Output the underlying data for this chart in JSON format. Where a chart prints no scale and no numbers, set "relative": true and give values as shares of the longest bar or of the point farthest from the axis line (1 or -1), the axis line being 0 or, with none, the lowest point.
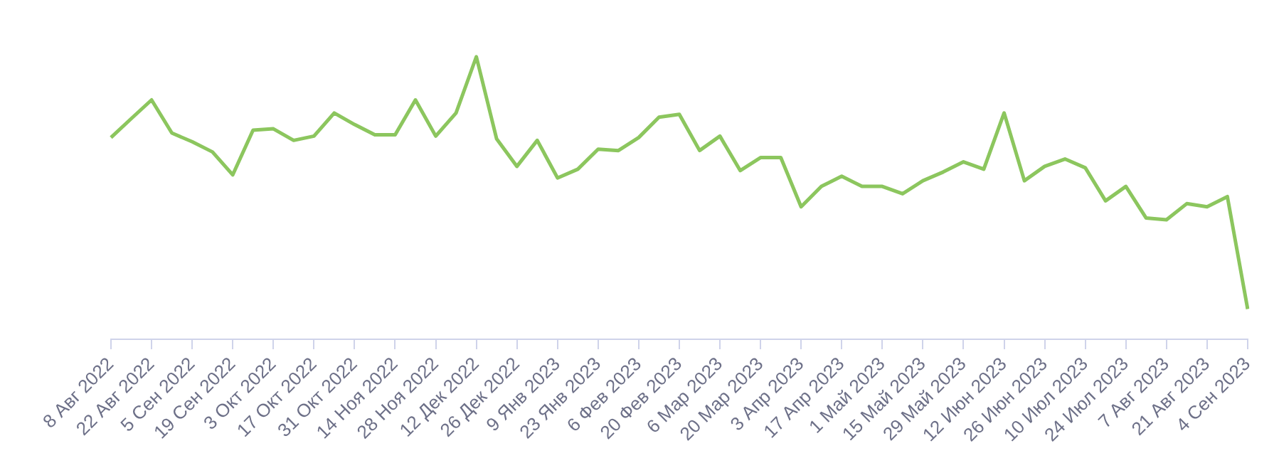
{
  "chart_data": {
    "type": "line",
    "relative": true,
    "legend": false,
    "grid": false,
    "marker": "none",
    "line_style": "solid",
    "categories": [
      "8 Авг 2022",
      null,
      "22 Авг 2022",
      null,
      "5 Сен 2022",
      null,
      "19 Сен 2022",
      null,
      "3 Окт 2022",
      null,
      "17 Окт 2022",
      null,
      "31 Окт 2022",
      null,
      "14 Ноя 2022",
      null,
      "28 Ноя 2022",
      null,
      "12 Дек 2022",
      null,
      "26 Дек 2022",
      null,
      "9 Янв 2023",
      null,
      "23 Янв 2023",
      null,
      "6 Фев 2023",
      null,
      "20 Фев 2023",
      null,
      "6 Мар 2023",
      null,
      "20 Мар 2023",
      null,
      "3 Апр 2023",
      null,
      "17 Апр 2023",
      null,
      "1 Май 2023",
      null,
      "15 Май 2023",
      null,
      "29 Май 2023",
      null,
      "12 Июн 2023",
      null,
      "26 Июн 2023",
      null,
      "10 Июл 2023",
      null,
      "24 Июл 2023",
      null,
      "7 Авг 2023",
      null,
      "21 Авг 2023",
      null,
      "4 Сен 2023"
    ],
    "series": [
      {
        "color": "#8cc65e",
        "values": [
          0.714,
          0.781,
          0.847,
          0.73,
          0.699,
          0.663,
          0.582,
          0.74,
          0.745,
          0.704,
          0.719,
          0.801,
          0.76,
          0.724,
          0.724,
          0.847,
          0.719,
          0.801,
          1,
          0.709,
          0.612,
          0.704,
          0.571,
          0.602,
          0.673,
          0.668,
          0.714,
          0.786,
          0.796,
          0.668,
          0.719,
          0.597,
          0.643,
          0.643,
          0.469,
          0.541,
          0.577,
          0.541,
          0.541,
          0.515,
          0.561,
          0.592,
          0.628,
          0.602,
          0.801,
          0.561,
          0.612,
          0.638,
          0.607,
          0.49,
          0.541,
          0.429,
          0.423,
          0.48,
          0.469,
          0.505,
          0.107
        ]
      }
    ]
  }
}
